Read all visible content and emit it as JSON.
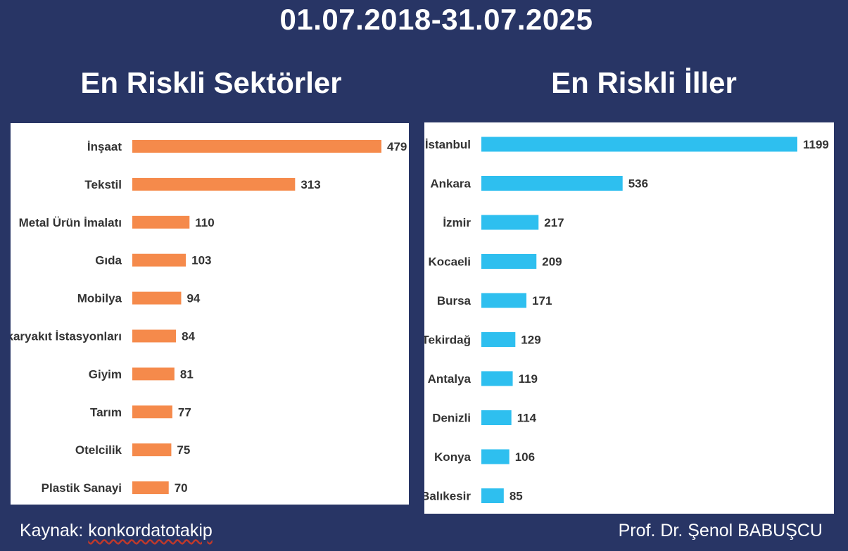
{
  "header": {
    "date_range": "01.07.2018-31.07.2025"
  },
  "colors": {
    "background": "#283565",
    "sector_bar": "#f58a4b",
    "city_bar": "#2ebfef"
  },
  "footer": {
    "source_label": "Kaynak:",
    "source_value": "konkordatotakip",
    "author": "Prof. Dr. Şenol BABUŞCU"
  },
  "chart_data": [
    {
      "type": "bar",
      "orientation": "horizontal",
      "title": "En Riskli Sektörler",
      "categories": [
        "İnşaat",
        "Tekstil",
        "Metal Ürün İmalatı",
        "Gıda",
        "Mobilya",
        "Akaryakıt İstasyonları",
        "Giyim",
        "Tarım",
        "Otelcilik",
        "Plastik Sanayi"
      ],
      "values": [
        479,
        313,
        110,
        103,
        94,
        84,
        81,
        77,
        75,
        70
      ],
      "xlim": [
        0,
        479
      ],
      "grid": false,
      "legend": "none",
      "data_labels": true
    },
    {
      "type": "bar",
      "orientation": "horizontal",
      "title": "En Riskli İller",
      "categories": [
        "İstanbul",
        "Ankara",
        "İzmir",
        "Kocaeli",
        "Bursa",
        "Tekirdağ",
        "Antalya",
        "Denizli",
        "Konya",
        "Balıkesir"
      ],
      "values": [
        1199,
        536,
        217,
        209,
        171,
        129,
        119,
        114,
        106,
        85
      ],
      "xlim": [
        0,
        1199
      ],
      "grid": false,
      "legend": "none",
      "data_labels": true
    }
  ]
}
